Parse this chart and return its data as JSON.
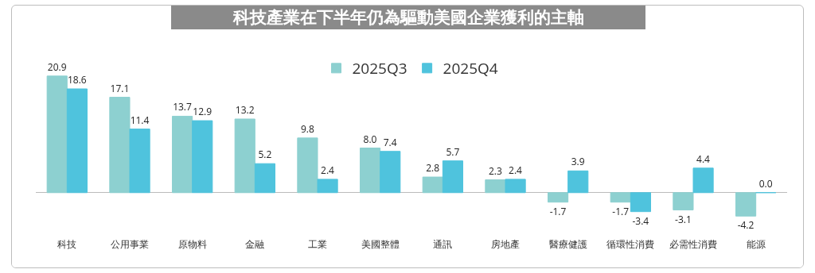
{
  "chart_data": {
    "type": "bar",
    "title": "科技產業在下半年仍為驅動美國企業獲利的主軸",
    "categories": [
      "科技",
      "公用事業",
      "原物料",
      "金融",
      "工業",
      "美國整體",
      "通訊",
      "房地產",
      "醫療健護",
      "循環性消費",
      "必需性消費",
      "能源"
    ],
    "series": [
      {
        "name": "2025Q3",
        "color": "#8dd0d0",
        "values": [
          20.9,
          17.1,
          13.7,
          13.2,
          9.8,
          8.0,
          2.8,
          2.3,
          -1.7,
          -1.7,
          -3.1,
          -4.2
        ],
        "value_labels": [
          "20.9",
          "17.1",
          "13.7",
          "13.2",
          "9.8",
          "8.0",
          "2.8",
          "2.3",
          "-1.7",
          "-1.7",
          "-3.1",
          "-4.2"
        ]
      },
      {
        "name": "2025Q4",
        "color": "#4fc3dd",
        "values": [
          18.6,
          11.4,
          12.9,
          5.2,
          2.4,
          7.4,
          5.7,
          2.4,
          3.9,
          -3.4,
          4.4,
          0.0
        ],
        "value_labels": [
          "18.6",
          "11.4",
          "12.9",
          "5.2",
          "2.4",
          "7.4",
          "5.7",
          "2.4",
          "3.9",
          "-3.4",
          "4.4",
          "0.0"
        ]
      }
    ],
    "legend": "top",
    "tick_labels": "x",
    "grid": false
  }
}
